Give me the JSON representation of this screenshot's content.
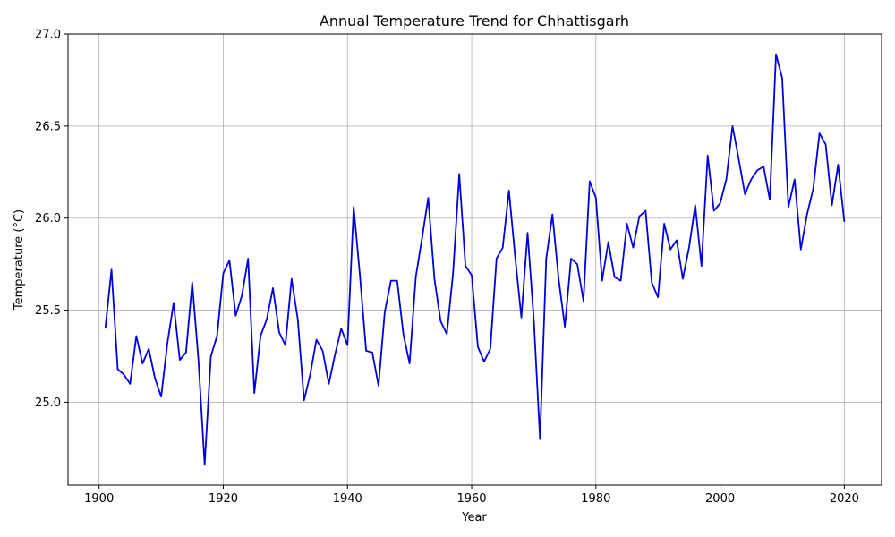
{
  "chart_data": {
    "type": "line",
    "title": "Annual Temperature Trend for Chhattisgarh",
    "xlabel": "Year",
    "ylabel": "Temperature (°C)",
    "xlim": [
      1895,
      2026
    ],
    "ylim": [
      24.55,
      27.0
    ],
    "xticks": [
      1900,
      1920,
      1940,
      1960,
      1980,
      2000,
      2020
    ],
    "yticks": [
      25.0,
      25.5,
      26.0,
      26.5,
      27.0
    ],
    "xtick_labels": [
      "1900",
      "1920",
      "1940",
      "1960",
      "1980",
      "2000",
      "2020"
    ],
    "ytick_labels": [
      "25.0",
      "25.5",
      "26.0",
      "26.5",
      "27.0"
    ],
    "grid": true,
    "legend": "none",
    "series": [
      {
        "color": "#0000dd",
        "x": [
          1901,
          1902,
          1903,
          1904,
          1905,
          1906,
          1907,
          1908,
          1909,
          1910,
          1911,
          1912,
          1913,
          1914,
          1915,
          1916,
          1917,
          1918,
          1919,
          1920,
          1921,
          1922,
          1923,
          1924,
          1925,
          1926,
          1927,
          1928,
          1929,
          1930,
          1931,
          1932,
          1933,
          1934,
          1935,
          1936,
          1937,
          1938,
          1939,
          1940,
          1941,
          1942,
          1943,
          1944,
          1945,
          1946,
          1947,
          1948,
          1949,
          1950,
          1951,
          1952,
          1953,
          1954,
          1955,
          1956,
          1957,
          1958,
          1959,
          1960,
          1961,
          1962,
          1963,
          1964,
          1965,
          1966,
          1967,
          1968,
          1969,
          1970,
          1971,
          1972,
          1973,
          1974,
          1975,
          1976,
          1977,
          1978,
          1979,
          1980,
          1981,
          1982,
          1983,
          1984,
          1985,
          1986,
          1987,
          1988,
          1989,
          1990,
          1991,
          1992,
          1993,
          1994,
          1995,
          1996,
          1997,
          1998,
          1999,
          2000,
          2001,
          2002,
          2003,
          2004,
          2005,
          2006,
          2007,
          2008,
          2009,
          2010,
          2011,
          2012,
          2013,
          2014,
          2015,
          2016,
          2017,
          2018,
          2019,
          2020
        ],
        "y": [
          25.4,
          25.72,
          25.18,
          25.15,
          25.1,
          25.36,
          25.21,
          25.29,
          25.13,
          25.03,
          25.32,
          25.54,
          25.23,
          25.27,
          25.65,
          25.23,
          24.66,
          25.25,
          25.36,
          25.7,
          25.77,
          25.47,
          25.58,
          25.78,
          25.05,
          25.36,
          25.45,
          25.62,
          25.38,
          25.31,
          25.67,
          25.45,
          25.01,
          25.15,
          25.34,
          25.28,
          25.1,
          25.26,
          25.4,
          25.31,
          26.06,
          25.69,
          25.28,
          25.27,
          25.09,
          25.49,
          25.66,
          25.66,
          25.37,
          25.21,
          25.68,
          25.89,
          26.11,
          25.67,
          25.44,
          25.37,
          25.7,
          26.24,
          25.74,
          25.69,
          25.3,
          25.22,
          25.29,
          25.78,
          25.84,
          26.15,
          25.79,
          25.46,
          25.92,
          25.45,
          24.8,
          25.78,
          26.02,
          25.67,
          25.41,
          25.78,
          25.75,
          25.55,
          26.2,
          26.11,
          25.66,
          25.87,
          25.68,
          25.66,
          25.97,
          25.84,
          26.01,
          26.04,
          25.65,
          25.57,
          25.97,
          25.83,
          25.88,
          25.67,
          25.84,
          26.07,
          25.74,
          26.34,
          26.04,
          26.08,
          26.21,
          26.5,
          26.32,
          26.13,
          26.21,
          26.26,
          26.28,
          26.1,
          26.89,
          26.76,
          26.06,
          26.21,
          25.83,
          26.02,
          26.16,
          26.46,
          26.4,
          26.07,
          26.29,
          25.98
        ]
      }
    ]
  }
}
